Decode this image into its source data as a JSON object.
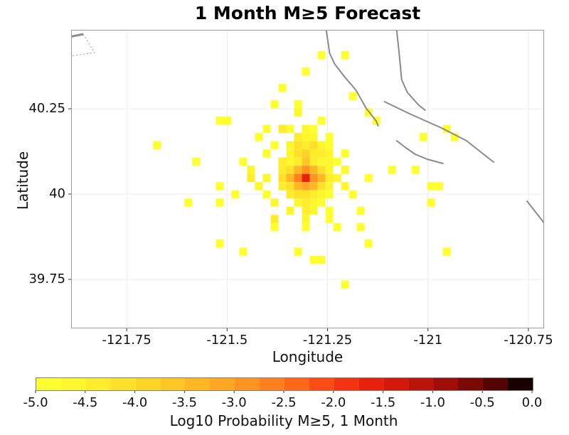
{
  "figure": {
    "title": "1 Month M≥5 Forecast"
  },
  "chart_data": {
    "type": "heatmap",
    "title": "1 Month M≥5 Forecast",
    "xlabel": "Longitude",
    "ylabel": "Latitude",
    "xlim": [
      -121.8883,
      -120.711
    ],
    "ylim": [
      39.6063,
      40.4813
    ],
    "grid": true,
    "grid_color": "#ececec",
    "xticks": [
      {
        "value": -121.75,
        "label": "-121.75"
      },
      {
        "value": -121.5,
        "label": "-121.5"
      },
      {
        "value": -121.25,
        "label": "-121.25"
      },
      {
        "value": -121.0,
        "label": "-121"
      },
      {
        "value": -120.75,
        "label": "-120.75"
      }
    ],
    "yticks": [
      {
        "value": 40.25,
        "label": "40.25"
      },
      {
        "value": 40.0,
        "label": "40"
      },
      {
        "value": 39.75,
        "label": "39.75"
      }
    ],
    "cell_grid": {
      "origin_lon": -121.304,
      "origin_lat": 40.047,
      "dlon": 0.0195,
      "dlat": 0.024
    },
    "cells": [
      [
        2,
        -15,
        -4.85
      ],
      [
        5,
        -15,
        -4.85
      ],
      [
        0,
        -13,
        -4.85
      ],
      [
        -3,
        -11,
        -4.85
      ],
      [
        6,
        -10,
        -4.85
      ],
      [
        -4,
        -9,
        -4.85
      ],
      [
        -1,
        -9,
        -4.85
      ],
      [
        -1,
        -8,
        -4.6
      ],
      [
        8,
        -8,
        -4.85
      ],
      [
        -11,
        -7,
        -4.85
      ],
      [
        -10,
        -7,
        -4.85
      ],
      [
        2,
        -7,
        -4.85
      ],
      [
        9,
        -7,
        -4.85
      ],
      [
        -5,
        -6,
        -4.85
      ],
      [
        -3,
        -6,
        -4.35
      ],
      [
        -2,
        -6,
        -4.85
      ],
      [
        0,
        -6,
        -4.6
      ],
      [
        1,
        -6,
        -4.85
      ],
      [
        18,
        -6,
        -4.85
      ],
      [
        -6,
        -5,
        -4.85
      ],
      [
        -1,
        -5,
        -4.35
      ],
      [
        0,
        -5,
        -4.6
      ],
      [
        1,
        -5,
        -4.6
      ],
      [
        3,
        -5,
        -4.85
      ],
      [
        15,
        -5,
        -4.85
      ],
      [
        19,
        -5,
        -4.85
      ],
      [
        -19,
        -4,
        -4.85
      ],
      [
        -4,
        -4,
        -4.85
      ],
      [
        -2,
        -4,
        -4.6
      ],
      [
        -1,
        -4,
        -4.1
      ],
      [
        0,
        -4,
        -4.35
      ],
      [
        1,
        -4,
        -4.1
      ],
      [
        2,
        -4,
        -4.6
      ],
      [
        3,
        -4,
        -4.85
      ],
      [
        -5,
        -3,
        -4.85
      ],
      [
        -2,
        -3,
        -4.6
      ],
      [
        -1,
        -3,
        -4.1
      ],
      [
        0,
        -3,
        -3.9
      ],
      [
        1,
        -3,
        -4.35
      ],
      [
        2,
        -3,
        -4.35
      ],
      [
        3,
        -3,
        -4.6
      ],
      [
        5,
        -3,
        -4.85
      ],
      [
        -14,
        -2,
        -4.85
      ],
      [
        -8,
        -2,
        -4.85
      ],
      [
        -3,
        -2,
        -4.35
      ],
      [
        -2,
        -2,
        -4.6
      ],
      [
        -1,
        -2,
        -4.35
      ],
      [
        0,
        -2,
        -3.6
      ],
      [
        1,
        -2,
        -4.35
      ],
      [
        2,
        -2,
        -4.6
      ],
      [
        3,
        -2,
        -4.6
      ],
      [
        4,
        -2,
        -4.85
      ],
      [
        -7,
        -1,
        -4.6
      ],
      [
        -3,
        -1,
        -4.35
      ],
      [
        -2,
        -1,
        -4.1
      ],
      [
        -1,
        -1,
        -3.3
      ],
      [
        0,
        -1,
        -2.9
      ],
      [
        1,
        -1,
        -3.3
      ],
      [
        2,
        -1,
        -4.1
      ],
      [
        3,
        -1,
        -4.6
      ],
      [
        5,
        -1,
        -4.6
      ],
      [
        11,
        -1,
        -4.85
      ],
      [
        14,
        -1,
        -4.85
      ],
      [
        -7,
        0,
        -4.35
      ],
      [
        -5,
        0,
        -4.6
      ],
      [
        -3,
        0,
        -4.1
      ],
      [
        -2,
        0,
        -3.5
      ],
      [
        -1,
        0,
        -2.6
      ],
      [
        0,
        0,
        -1.6
      ],
      [
        1,
        0,
        -2.9
      ],
      [
        2,
        0,
        -3.5
      ],
      [
        3,
        0,
        -4.35
      ],
      [
        4,
        0,
        -4.6
      ],
      [
        8,
        0,
        -4.85
      ],
      [
        -11,
        1,
        -4.85
      ],
      [
        -6,
        1,
        -4.6
      ],
      [
        -3,
        1,
        -4.35
      ],
      [
        -2,
        1,
        -4.1
      ],
      [
        -1,
        1,
        -3.4
      ],
      [
        0,
        1,
        -3.05
      ],
      [
        1,
        1,
        -3.4
      ],
      [
        2,
        1,
        -4.1
      ],
      [
        3,
        1,
        -4.6
      ],
      [
        5,
        1,
        -4.6
      ],
      [
        16,
        1,
        -4.85
      ],
      [
        17,
        1,
        -4.85
      ],
      [
        -9,
        2,
        -4.85
      ],
      [
        -5,
        2,
        -4.85
      ],
      [
        -2,
        2,
        -4.35
      ],
      [
        -1,
        2,
        -4.1
      ],
      [
        0,
        2,
        -4.1
      ],
      [
        1,
        2,
        -4.35
      ],
      [
        2,
        2,
        -4.6
      ],
      [
        3,
        2,
        -4.85
      ],
      [
        6,
        2,
        -4.85
      ],
      [
        -15,
        3,
        -4.85
      ],
      [
        -11,
        3,
        -4.85
      ],
      [
        -4,
        3,
        -4.6
      ],
      [
        -1,
        3,
        -4.6
      ],
      [
        0,
        3,
        -4.35
      ],
      [
        1,
        3,
        -4.6
      ],
      [
        2,
        3,
        -4.85
      ],
      [
        16,
        3,
        -4.85
      ],
      [
        -2,
        4,
        -4.6
      ],
      [
        0,
        4,
        -4.35
      ],
      [
        1,
        4,
        -4.6
      ],
      [
        3,
        4,
        -4.85
      ],
      [
        7,
        4,
        -4.85
      ],
      [
        -4,
        5,
        -4.35
      ],
      [
        0,
        5,
        -4.6
      ],
      [
        3,
        5,
        -4.85
      ],
      [
        -4,
        6,
        -4.85
      ],
      [
        0,
        6,
        -4.85
      ],
      [
        4,
        6,
        -4.85
      ],
      [
        7,
        6,
        -4.85
      ],
      [
        -11,
        8,
        -4.85
      ],
      [
        8,
        8,
        -4.85
      ],
      [
        -8,
        9,
        -4.85
      ],
      [
        -1,
        9,
        -4.85
      ],
      [
        18,
        9,
        -4.85
      ],
      [
        1,
        10,
        -4.85
      ],
      [
        2,
        10,
        -4.85
      ],
      [
        5,
        13,
        -4.85
      ]
    ],
    "colormap": {
      "vmin": -5.0,
      "vmax": 0.0,
      "n_segments": 20,
      "colors": [
        "#FFFF30",
        "#FFF72E",
        "#FFEC2C",
        "#FFE02A",
        "#FFD428",
        "#FFC626",
        "#FFB724",
        "#FFA722",
        "#FF9520",
        "#FF801D",
        "#FF681A",
        "#FB4C16",
        "#F33312",
        "#E8200E",
        "#D4190B",
        "#BA1309",
        "#9C0E07",
        "#7A0905",
        "#540503",
        "#190100"
      ]
    },
    "colorbar": {
      "label": "Log10 Probability M≥5, 1 Month",
      "ticks": [
        {
          "value": -5.0,
          "label": "-5.0"
        },
        {
          "value": -4.5,
          "label": "-4.5"
        },
        {
          "value": -4.0,
          "label": "-4.0"
        },
        {
          "value": -3.5,
          "label": "-3.5"
        },
        {
          "value": -3.0,
          "label": "-3.0"
        },
        {
          "value": -2.5,
          "label": "-2.5"
        },
        {
          "value": -2.0,
          "label": "-2.0"
        },
        {
          "value": -1.5,
          "label": "-1.5"
        },
        {
          "value": -1.0,
          "label": "-1.0"
        },
        {
          "value": -0.5,
          "label": "-0.5"
        },
        {
          "value": 0.0,
          "label": "0.0"
        }
      ]
    },
    "faults": {
      "color": "#8a8a8a",
      "lines": [
        [
          [
            -121.2535,
            40.4813
          ],
          [
            -121.2447,
            40.4125
          ],
          [
            -121.2323,
            40.3813
          ],
          [
            -121.2092,
            40.3458
          ],
          [
            -121.1791,
            40.3042
          ],
          [
            -121.1543,
            40.2521
          ],
          [
            -121.1294,
            40.2146
          ],
          [
            -121.1241,
            40.2
          ]
        ],
        [
          [
            -121.078,
            40.4813
          ],
          [
            -121.0709,
            40.4021
          ],
          [
            -121.0656,
            40.3354
          ],
          [
            -121.0514,
            40.2979
          ],
          [
            -121.023,
            40.2604
          ],
          [
            -121.0071,
            40.2458
          ]
        ],
        [
          [
            -121.1082,
            40.2708
          ],
          [
            -121.0461,
            40.2354
          ],
          [
            -120.9663,
            40.1938
          ],
          [
            -120.9043,
            40.1563
          ],
          [
            -120.8369,
            40.0938
          ]
        ],
        [
          [
            -121.078,
            40.1563
          ],
          [
            -121.055,
            40.1354
          ],
          [
            -121.0319,
            40.1167
          ],
          [
            -121.0018,
            40.1021
          ],
          [
            -120.9628,
            40.0896
          ]
        ],
        [
          [
            -120.7535,
            39.9792
          ],
          [
            -120.7092,
            39.9125
          ]
        ]
      ]
    },
    "boundary_polygon": {
      "solid": [
        [
          -121.9096,
          40.4563
        ],
        [
          -121.8582,
          40.4688
        ]
      ],
      "dotted": [
        [
          -121.8582,
          40.4688
        ],
        [
          -121.8298,
          40.4146
        ],
        [
          -121.9131,
          40.4
        ]
      ]
    }
  }
}
